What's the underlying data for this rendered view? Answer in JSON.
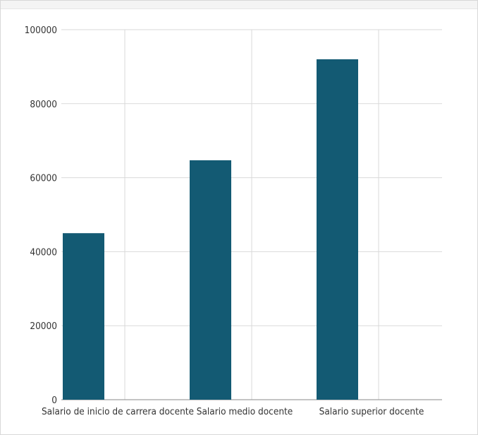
{
  "chart_data": {
    "type": "bar",
    "categories": [
      "Salario de inicio de carrera docente",
      "Salario medio docente",
      "Salario superior docente"
    ],
    "values": [
      45000,
      64700,
      92000
    ],
    "ylim": [
      0,
      100000
    ],
    "yticks": [
      "0",
      "20000",
      "40000",
      "60000",
      "80000",
      "100000"
    ],
    "grid": true,
    "colors": {
      "bar": "#135a73",
      "grid": "#d9d9d9",
      "axis": "#888888"
    }
  }
}
